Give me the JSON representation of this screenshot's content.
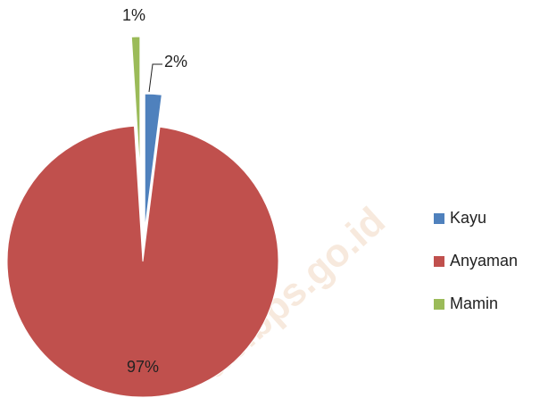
{
  "chart_data": {
    "type": "pie",
    "categories": [
      "Kayu",
      "Anyaman",
      "Mamin"
    ],
    "values": [
      2,
      97,
      1
    ],
    "value_labels": [
      "2%",
      "97%",
      "1%"
    ],
    "colors": [
      "#4f81bd",
      "#c0504d",
      "#9bbb59"
    ],
    "legend": "right",
    "watermark": "ab.bps.go.id"
  }
}
